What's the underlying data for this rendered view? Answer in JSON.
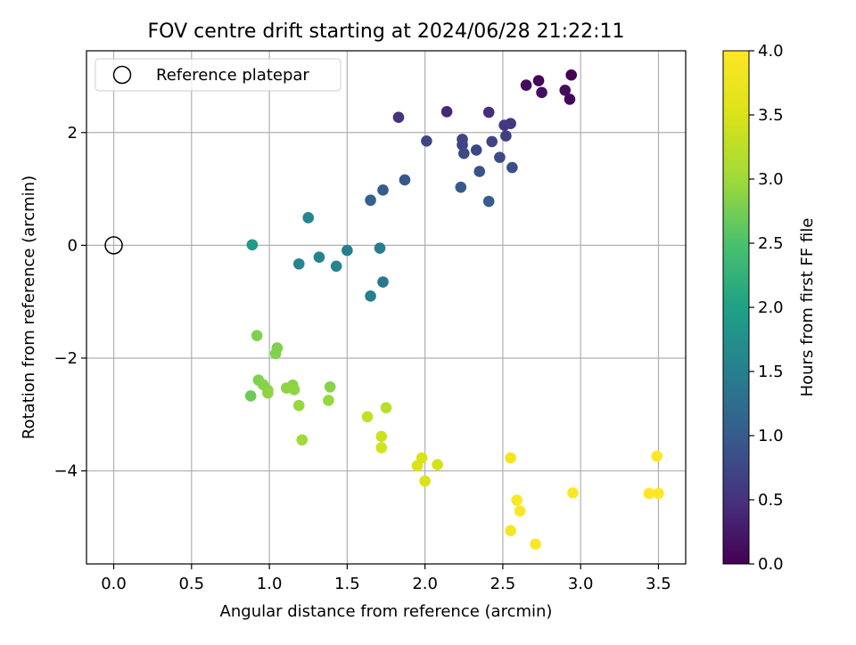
{
  "chart_data": {
    "type": "scatter",
    "title": "FOV centre drift starting at 2024/06/28 21:22:11",
    "xlabel": "Angular distance from reference (arcmin)",
    "ylabel": "Rotation from reference (arcmin)",
    "xlim": [
      -0.175,
      3.675
    ],
    "ylim": [
      -5.65,
      3.45
    ],
    "grid": true,
    "x_ticks": [
      "0.0",
      "0.5",
      "1.0",
      "1.5",
      "2.0",
      "2.5",
      "3.0",
      "3.5"
    ],
    "x_tick_values": [
      0.0,
      0.5,
      1.0,
      1.5,
      2.0,
      2.5,
      3.0,
      3.5
    ],
    "y_ticks": [
      "−4",
      "−2",
      "0",
      "2"
    ],
    "y_tick_values": [
      -4,
      -2,
      0,
      2
    ],
    "legend": {
      "placement": "top-left",
      "entries": [
        "Reference platepar"
      ]
    },
    "reference_point": {
      "x": 0.0,
      "y": 0.0,
      "label": "Reference platepar"
    },
    "colorbar": {
      "label": "Hours from first FF file",
      "colormap": "viridis",
      "range": [
        0.0,
        4.0
      ],
      "ticks": [
        "0.0",
        "0.5",
        "1.0",
        "1.5",
        "2.0",
        "2.5",
        "3.0",
        "3.5",
        "4.0"
      ],
      "tick_values": [
        0.0,
        0.5,
        1.0,
        1.5,
        2.0,
        2.5,
        3.0,
        3.5,
        4.0
      ]
    },
    "points": [
      {
        "x": 2.94,
        "y": 3.02,
        "hours": 0.0
      },
      {
        "x": 2.73,
        "y": 2.92,
        "hours": 0.05
      },
      {
        "x": 2.65,
        "y": 2.84,
        "hours": 0.1
      },
      {
        "x": 2.9,
        "y": 2.75,
        "hours": 0.12
      },
      {
        "x": 2.75,
        "y": 2.71,
        "hours": 0.15
      },
      {
        "x": 2.93,
        "y": 2.59,
        "hours": 0.08
      },
      {
        "x": 2.14,
        "y": 2.37,
        "hours": 0.4
      },
      {
        "x": 2.41,
        "y": 2.36,
        "hours": 0.45
      },
      {
        "x": 1.83,
        "y": 2.27,
        "hours": 0.5
      },
      {
        "x": 2.55,
        "y": 2.16,
        "hours": 0.55
      },
      {
        "x": 2.51,
        "y": 2.13,
        "hours": 0.6
      },
      {
        "x": 2.52,
        "y": 1.94,
        "hours": 0.65
      },
      {
        "x": 2.24,
        "y": 1.88,
        "hours": 0.7
      },
      {
        "x": 2.01,
        "y": 1.85,
        "hours": 0.75
      },
      {
        "x": 2.43,
        "y": 1.84,
        "hours": 0.7
      },
      {
        "x": 2.24,
        "y": 1.78,
        "hours": 0.72
      },
      {
        "x": 2.33,
        "y": 1.69,
        "hours": 0.75
      },
      {
        "x": 2.25,
        "y": 1.63,
        "hours": 0.8
      },
      {
        "x": 2.48,
        "y": 1.56,
        "hours": 0.78
      },
      {
        "x": 2.56,
        "y": 1.38,
        "hours": 0.85
      },
      {
        "x": 2.35,
        "y": 1.31,
        "hours": 0.88
      },
      {
        "x": 1.87,
        "y": 1.16,
        "hours": 0.95
      },
      {
        "x": 2.23,
        "y": 1.03,
        "hours": 0.98
      },
      {
        "x": 1.73,
        "y": 0.98,
        "hours": 1.0
      },
      {
        "x": 1.65,
        "y": 0.8,
        "hours": 1.05
      },
      {
        "x": 2.41,
        "y": 0.78,
        "hours": 1.02
      },
      {
        "x": 1.25,
        "y": 0.49,
        "hours": 1.6
      },
      {
        "x": 0.89,
        "y": 0.01,
        "hours": 1.9
      },
      {
        "x": 1.71,
        "y": -0.05,
        "hours": 1.45
      },
      {
        "x": 1.5,
        "y": -0.09,
        "hours": 1.5
      },
      {
        "x": 1.32,
        "y": -0.21,
        "hours": 1.55
      },
      {
        "x": 1.19,
        "y": -0.33,
        "hours": 1.6
      },
      {
        "x": 1.43,
        "y": -0.37,
        "hours": 1.58
      },
      {
        "x": 1.73,
        "y": -0.65,
        "hours": 1.4
      },
      {
        "x": 1.65,
        "y": -0.9,
        "hours": 1.5
      },
      {
        "x": 0.92,
        "y": -1.6,
        "hours": 2.8
      },
      {
        "x": 1.05,
        "y": -1.82,
        "hours": 2.8
      },
      {
        "x": 1.04,
        "y": -1.92,
        "hours": 2.82
      },
      {
        "x": 0.93,
        "y": -2.39,
        "hours": 2.8
      },
      {
        "x": 0.96,
        "y": -2.47,
        "hours": 2.85
      },
      {
        "x": 1.15,
        "y": -2.48,
        "hours": 2.85
      },
      {
        "x": 1.39,
        "y": -2.51,
        "hours": 2.85
      },
      {
        "x": 1.11,
        "y": -2.53,
        "hours": 2.9
      },
      {
        "x": 0.99,
        "y": -2.57,
        "hours": 2.85
      },
      {
        "x": 1.16,
        "y": -2.56,
        "hours": 2.9
      },
      {
        "x": 0.99,
        "y": -2.62,
        "hours": 2.9
      },
      {
        "x": 0.88,
        "y": -2.67,
        "hours": 2.7
      },
      {
        "x": 1.38,
        "y": -2.75,
        "hours": 2.95
      },
      {
        "x": 1.19,
        "y": -2.84,
        "hours": 2.95
      },
      {
        "x": 1.75,
        "y": -2.88,
        "hours": 3.2
      },
      {
        "x": 1.63,
        "y": -3.04,
        "hours": 3.3
      },
      {
        "x": 1.72,
        "y": -3.39,
        "hours": 3.4
      },
      {
        "x": 1.21,
        "y": -3.45,
        "hours": 3.0
      },
      {
        "x": 1.72,
        "y": -3.59,
        "hours": 3.42
      },
      {
        "x": 1.98,
        "y": -3.77,
        "hours": 3.5
      },
      {
        "x": 2.55,
        "y": -3.77,
        "hours": 3.85
      },
      {
        "x": 1.95,
        "y": -3.91,
        "hours": 3.5
      },
      {
        "x": 2.08,
        "y": -3.89,
        "hours": 3.45
      },
      {
        "x": 2.0,
        "y": -4.18,
        "hours": 3.5
      },
      {
        "x": 3.49,
        "y": -3.74,
        "hours": 4.0
      },
      {
        "x": 2.95,
        "y": -4.39,
        "hours": 3.95
      },
      {
        "x": 3.44,
        "y": -4.4,
        "hours": 4.0
      },
      {
        "x": 3.5,
        "y": -4.4,
        "hours": 4.0
      },
      {
        "x": 2.59,
        "y": -4.52,
        "hours": 3.95
      },
      {
        "x": 2.61,
        "y": -4.71,
        "hours": 3.95
      },
      {
        "x": 2.55,
        "y": -5.06,
        "hours": 3.9
      },
      {
        "x": 2.71,
        "y": -5.3,
        "hours": 3.95
      }
    ]
  }
}
